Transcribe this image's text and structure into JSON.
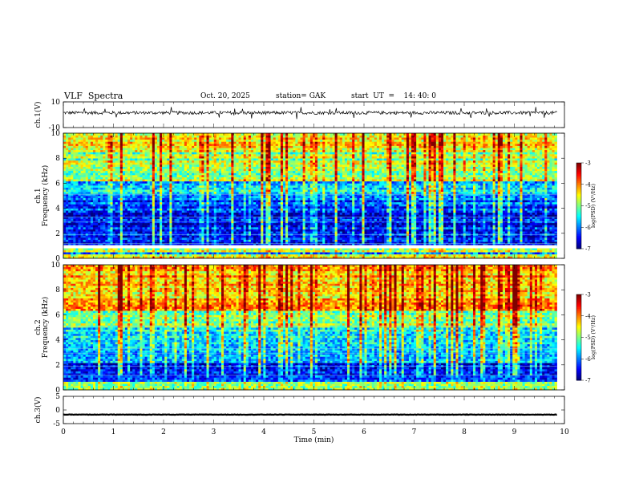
{
  "header": {
    "title": "VLF  Spectra",
    "date": "Oct. 20, 2025",
    "station": "station= GAK",
    "start": "start  UT  =    14: 40: 0"
  },
  "chart_data": [
    {
      "type": "line",
      "name": "ch1-waveform",
      "ylabel": "ch.1(V)",
      "ylim": [
        -10,
        10
      ],
      "yticks": [
        "10",
        "-10"
      ],
      "xlim": [
        0,
        10
      ],
      "line_end_min": 9.85,
      "baseline_v": 1.5,
      "amplitude_v": 2.5
    },
    {
      "type": "heatmap",
      "name": "ch1-spectrogram",
      "ylabel": "ch.1\nFrequency  (kHz)",
      "ylim": [
        0,
        10
      ],
      "yticks": [
        "0",
        "2",
        "4",
        "6",
        "8",
        "10"
      ],
      "xlim": [
        0,
        10
      ],
      "data_end_min": 9.85,
      "bands": [
        {
          "f0": 0.0,
          "f1": 0.35,
          "level": -4.6
        },
        {
          "f0": 0.35,
          "f1": 0.55,
          "level": -5.8
        },
        {
          "f0": 0.55,
          "f1": 0.8,
          "level": -4.9
        },
        {
          "f0": 0.8,
          "f1": 1.05,
          "level": -7.0
        },
        {
          "f0": 1.05,
          "f1": 3.6,
          "level": -6.5
        },
        {
          "f0": 3.6,
          "f1": 5.0,
          "level": -6.2
        },
        {
          "f0": 5.0,
          "f1": 6.2,
          "level": -5.7
        },
        {
          "f0": 6.2,
          "f1": 8.5,
          "level": -4.9
        },
        {
          "f0": 8.5,
          "f1": 10.0,
          "level": -4.4
        }
      ],
      "gap_khz": [
        0.8,
        1.05
      ],
      "colorbar": {
        "label": "log(PSD) (V²/Hz)",
        "ticks": [
          "-3",
          "-4",
          "-5",
          "-6",
          "-7"
        ],
        "range": [
          -7,
          -3
        ]
      }
    },
    {
      "type": "heatmap",
      "name": "ch2-spectrogram",
      "ylabel": "ch.2\nFrequency  (kHz)",
      "ylim": [
        0,
        10
      ],
      "yticks": [
        "0",
        "2",
        "4",
        "6",
        "8",
        "10"
      ],
      "xlim": [
        0,
        10
      ],
      "data_end_min": 9.85,
      "bands": [
        {
          "f0": 0.0,
          "f1": 0.6,
          "level": -4.8
        },
        {
          "f0": 0.6,
          "f1": 2.2,
          "level": -6.5
        },
        {
          "f0": 2.2,
          "f1": 3.6,
          "level": -6.0
        },
        {
          "f0": 3.6,
          "f1": 5.0,
          "level": -5.5
        },
        {
          "f0": 5.0,
          "f1": 6.4,
          "level": -4.9
        },
        {
          "f0": 6.4,
          "f1": 10.0,
          "level": -4.3
        }
      ],
      "colorbar": {
        "label": "log(PSD) (V²/Hz)",
        "ticks": [
          "-3",
          "-4",
          "-5",
          "-6",
          "-7"
        ],
        "range": [
          -7,
          -3
        ]
      }
    },
    {
      "type": "line",
      "name": "ch3-waveform",
      "ylabel": "ch.3(V)",
      "ylim": [
        -5,
        5
      ],
      "yticks": [
        "5",
        "0",
        "-5"
      ],
      "xlim": [
        0,
        10
      ],
      "line_end_min": 9.85,
      "baseline_v": -1.7,
      "amplitude_v": 0.15
    }
  ],
  "xaxis": {
    "label": "Time  (min)",
    "ticks": [
      "0",
      "1",
      "2",
      "3",
      "4",
      "5",
      "6",
      "7",
      "8",
      "9",
      "10"
    ]
  }
}
